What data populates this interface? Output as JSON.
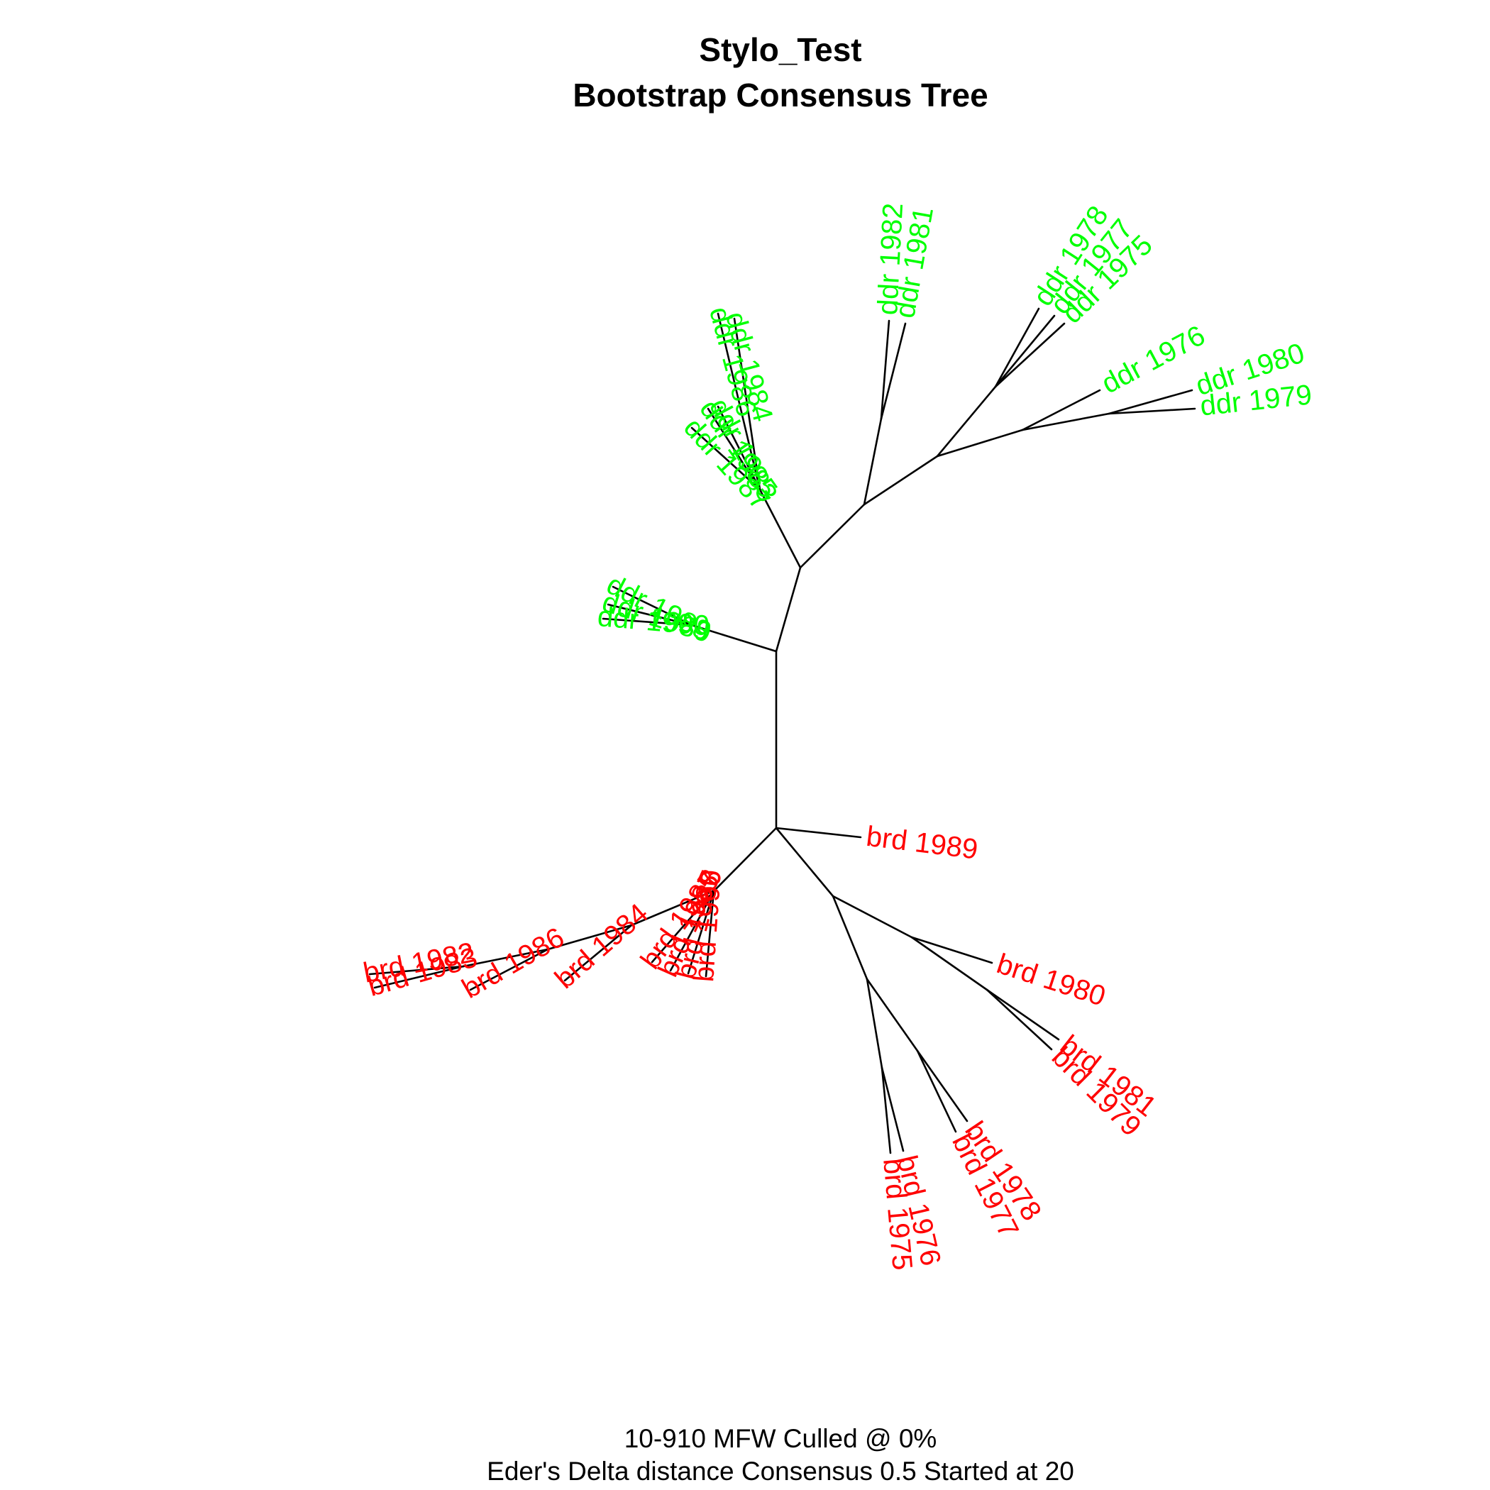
{
  "title": "Stylo_Test",
  "subtitle": "Bootstrap Consensus Tree",
  "footer_line1": "10-910 MFW  Culled @ 0%",
  "footer_line2": "Eder's Delta distance Consensus 0.5 Started at 20",
  "colors": {
    "ddr": "#00ff00",
    "brd": "#ff0000",
    "branch": "#000000"
  },
  "tree": {
    "leaves": [
      {
        "id": "ddr_1984",
        "label": "ddr 1984",
        "group": "ddr"
      },
      {
        "id": "ddr_1986",
        "label": "ddr 1986",
        "group": "ddr"
      },
      {
        "id": "ddr_1983",
        "label": "ddr 1983",
        "group": "ddr"
      },
      {
        "id": "ddr_1985",
        "label": "ddr 1985",
        "group": "ddr"
      },
      {
        "id": "ddr_1987",
        "label": "ddr 1987",
        "group": "ddr"
      },
      {
        "id": "ddr_1982",
        "label": "ddr 1982",
        "group": "ddr"
      },
      {
        "id": "ddr_1981",
        "label": "ddr 1981",
        "group": "ddr"
      },
      {
        "id": "ddr_1978",
        "label": "ddr 1978",
        "group": "ddr"
      },
      {
        "id": "ddr_1977",
        "label": "ddr 1977",
        "group": "ddr"
      },
      {
        "id": "ddr_1975",
        "label": "ddr 1975",
        "group": "ddr"
      },
      {
        "id": "ddr_1976",
        "label": "ddr 1976",
        "group": "ddr"
      },
      {
        "id": "ddr_1980",
        "label": "ddr 1980",
        "group": "ddr"
      },
      {
        "id": "ddr_1979",
        "label": "ddr 1979",
        "group": "ddr"
      },
      {
        "id": "ddr_1988",
        "label": "ddr 1988",
        "group": "ddr"
      },
      {
        "id": "ddr_1989",
        "label": "ddr 1989",
        "group": "ddr"
      },
      {
        "id": "ddr_1990",
        "label": "ddr 1990",
        "group": "ddr"
      },
      {
        "id": "brd_1989",
        "label": "brd 1989",
        "group": "brd"
      },
      {
        "id": "brd_1982",
        "label": "brd 1982",
        "group": "brd"
      },
      {
        "id": "brd_1983",
        "label": "brd 1983",
        "group": "brd"
      },
      {
        "id": "brd_1986",
        "label": "brd 1986",
        "group": "brd"
      },
      {
        "id": "brd_1984",
        "label": "brd 1984",
        "group": "brd"
      },
      {
        "id": "brd_1985",
        "label": "brd 1985",
        "group": "brd"
      },
      {
        "id": "brd_1987",
        "label": "brd 1987",
        "group": "brd"
      },
      {
        "id": "brd_1988",
        "label": "brd 1988",
        "group": "brd"
      },
      {
        "id": "brd_1990",
        "label": "brd 1990",
        "group": "brd"
      },
      {
        "id": "brd_1980",
        "label": "brd 1980",
        "group": "brd"
      },
      {
        "id": "brd_1981",
        "label": "brd 1981",
        "group": "brd"
      },
      {
        "id": "brd_1979",
        "label": "brd 1979",
        "group": "brd"
      },
      {
        "id": "brd_1978",
        "label": "brd 1978",
        "group": "brd"
      },
      {
        "id": "brd_1977",
        "label": "brd 1977",
        "group": "brd"
      },
      {
        "id": "brd_1976",
        "label": "brd 1976",
        "group": "brd"
      },
      {
        "id": "brd_1975",
        "label": "brd 1975",
        "group": "brd"
      }
    ],
    "edges": [
      [
        "n_root_b",
        "n_root_a"
      ],
      [
        "n_root_a",
        "n_ddr_upper"
      ],
      [
        "n_root_a",
        "n_ddr_888990"
      ],
      [
        "n_ddr_888990",
        "ddr_1988"
      ],
      [
        "n_ddr_888990",
        "ddr_1989"
      ],
      [
        "n_ddr_888990",
        "ddr_1990"
      ],
      [
        "n_ddr_upper",
        "n_ddr_left"
      ],
      [
        "n_ddr_upper",
        "n_ddr_right"
      ],
      [
        "n_ddr_left",
        "ddr_1984"
      ],
      [
        "n_ddr_left",
        "ddr_1986"
      ],
      [
        "n_ddr_left",
        "ddr_1983"
      ],
      [
        "n_ddr_left",
        "ddr_1985"
      ],
      [
        "n_ddr_left",
        "ddr_1987"
      ],
      [
        "n_ddr_right",
        "n_ddr_8182"
      ],
      [
        "n_ddr_right",
        "n_ddr_east"
      ],
      [
        "n_ddr_8182",
        "ddr_1982"
      ],
      [
        "n_ddr_8182",
        "ddr_1981"
      ],
      [
        "n_ddr_east",
        "n_ddr_757778"
      ],
      [
        "n_ddr_east",
        "n_ddr_767980"
      ],
      [
        "n_ddr_757778",
        "ddr_1978"
      ],
      [
        "n_ddr_757778",
        "ddr_1977"
      ],
      [
        "n_ddr_757778",
        "ddr_1975"
      ],
      [
        "n_ddr_767980",
        "ddr_1976"
      ],
      [
        "n_ddr_767980",
        "n_ddr_7980"
      ],
      [
        "n_ddr_7980",
        "ddr_1980"
      ],
      [
        "n_ddr_7980",
        "ddr_1979"
      ],
      [
        "n_root_b",
        "brd_1989"
      ],
      [
        "n_root_b",
        "n_brd_left"
      ],
      [
        "n_root_b",
        "n_brd_right"
      ],
      [
        "n_brd_left",
        "n_brd_8590"
      ],
      [
        "n_brd_left",
        "n_brd_84grp"
      ],
      [
        "n_brd_8590",
        "brd_1985"
      ],
      [
        "n_brd_8590",
        "brd_1987"
      ],
      [
        "n_brd_8590",
        "brd_1988"
      ],
      [
        "n_brd_8590",
        "brd_1990"
      ],
      [
        "n_brd_84grp",
        "brd_1984"
      ],
      [
        "n_brd_84grp",
        "n_brd_86grp"
      ],
      [
        "n_brd_86grp",
        "brd_1986"
      ],
      [
        "n_brd_86grp",
        "n_brd_8283"
      ],
      [
        "n_brd_8283",
        "brd_1982"
      ],
      [
        "n_brd_8283",
        "brd_1983"
      ],
      [
        "n_brd_right",
        "n_brd_80grp"
      ],
      [
        "n_brd_right",
        "n_brd_75grp"
      ],
      [
        "n_brd_80grp",
        "brd_1980"
      ],
      [
        "n_brd_80grp",
        "n_brd_7981"
      ],
      [
        "n_brd_7981",
        "brd_1981"
      ],
      [
        "n_brd_7981",
        "brd_1979"
      ],
      [
        "n_brd_75grp",
        "n_brd_7778"
      ],
      [
        "n_brd_75grp",
        "n_brd_7576"
      ],
      [
        "n_brd_7778",
        "brd_1978"
      ],
      [
        "n_brd_7778",
        "brd_1977"
      ],
      [
        "n_brd_7576",
        "brd_1976"
      ],
      [
        "n_brd_7576",
        "brd_1975"
      ]
    ]
  }
}
